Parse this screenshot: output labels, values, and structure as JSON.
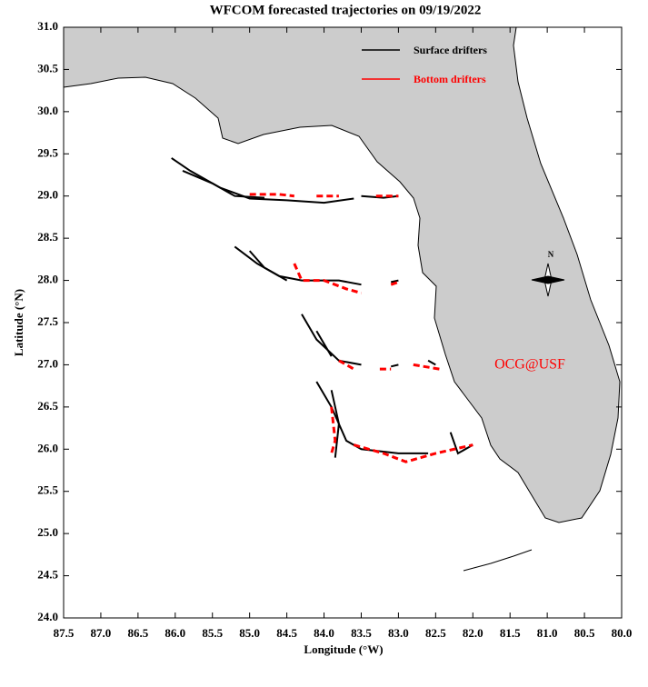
{
  "chart_data": {
    "type": "trajectory-map",
    "title": "WFCOM forecasted trajectories on 09/19/2022",
    "x_label": "Longitude (°W)",
    "y_label": "Latitude (°N)",
    "annotation": "OCG@USF",
    "compass_label": "N",
    "xlim": [
      87.5,
      80.0
    ],
    "ylim": [
      24.0,
      31.0
    ],
    "xticks": [
      87.5,
      {
        "value": 87,
        "label": "87.0"
      },
      86.5,
      {
        "value": 86,
        "label": "86.0"
      },
      85.5,
      {
        "value": 85,
        "label": "85.0"
      },
      84.5,
      {
        "value": 84,
        "label": "84.0"
      },
      83.5,
      {
        "value": 83,
        "label": "83.0"
      },
      82.5,
      {
        "value": 82,
        "label": "82.0"
      },
      81.5,
      {
        "value": 81,
        "label": "81.0"
      },
      80.5,
      {
        "value": 80,
        "label": "80.0"
      }
    ],
    "yticks": [
      {
        "value": 24,
        "label": "24.0"
      },
      24.5,
      {
        "value": 25,
        "label": "25.0"
      },
      25.5,
      {
        "value": 26,
        "label": "26.0"
      },
      26.5,
      {
        "value": 27,
        "label": "27.0"
      },
      27.5,
      {
        "value": 28,
        "label": "28.0"
      },
      28.5,
      {
        "value": 29,
        "label": "29.0"
      },
      29.5,
      {
        "value": 30,
        "label": "30.0"
      },
      30.5,
      {
        "value": 31,
        "label": "31.0"
      }
    ],
    "series": [
      {
        "name": "Surface drifters",
        "color": "#000000",
        "tracks": [
          {
            "x": [
              86.05,
              85.8,
              85.4,
              85.0,
              84.5,
              84.0,
              83.6
            ],
            "y": [
              29.45,
              29.3,
              29.1,
              28.97,
              28.95,
              28.92,
              28.97
            ]
          },
          {
            "x": [
              85.9,
              85.5,
              85.2,
              84.8
            ],
            "y": [
              29.3,
              29.15,
              29.0,
              28.98
            ]
          },
          {
            "x": [
              83.5,
              83.2,
              83.0
            ],
            "y": [
              29.0,
              28.98,
              29.0
            ]
          },
          {
            "x": [
              85.2,
              84.9,
              84.6,
              84.3,
              83.8,
              83.5
            ],
            "y": [
              28.4,
              28.2,
              28.05,
              28.0,
              28.0,
              27.95
            ]
          },
          {
            "x": [
              85.0,
              84.8,
              84.5
            ],
            "y": [
              28.35,
              28.15,
              28.0
            ]
          },
          {
            "x": [
              83.1,
              83.0
            ],
            "y": [
              27.98,
              28.0
            ]
          },
          {
            "x": [
              84.3,
              84.1,
              83.8,
              83.5
            ],
            "y": [
              27.6,
              27.3,
              27.05,
              27.0
            ]
          },
          {
            "x": [
              84.1,
              83.9
            ],
            "y": [
              27.4,
              27.1
            ]
          },
          {
            "x": [
              83.1,
              83.0
            ],
            "y": [
              26.98,
              27.0
            ]
          },
          {
            "x": [
              82.6,
              82.5
            ],
            "y": [
              27.05,
              27.0
            ]
          },
          {
            "x": [
              84.1,
              83.9,
              83.7,
              83.5,
              83.0,
              82.6
            ],
            "y": [
              26.8,
              26.5,
              26.1,
              26.0,
              25.95,
              25.95
            ]
          },
          {
            "x": [
              83.9,
              83.8,
              83.85
            ],
            "y": [
              26.7,
              26.3,
              25.9
            ]
          },
          {
            "x": [
              82.3,
              82.2,
              82.0
            ],
            "y": [
              26.2,
              25.95,
              26.05
            ]
          }
        ]
      },
      {
        "name": "Bottom drifters",
        "color": "#ff0000",
        "tracks": [
          {
            "x": [
              85.0,
              84.6,
              84.4
            ],
            "y": [
              29.02,
              29.02,
              29.0
            ]
          },
          {
            "x": [
              84.1,
              83.8
            ],
            "y": [
              29.0,
              29.0
            ]
          },
          {
            "x": [
              83.3,
              83.0
            ],
            "y": [
              29.0,
              29.0
            ]
          },
          {
            "x": [
              84.4,
              84.3,
              84.0,
              83.7,
              83.5
            ],
            "y": [
              28.2,
              28.0,
              28.0,
              27.9,
              27.85
            ]
          },
          {
            "x": [
              83.1,
              83.0
            ],
            "y": [
              27.95,
              27.98
            ]
          },
          {
            "x": [
              83.8,
              83.6
            ],
            "y": [
              27.05,
              26.95
            ]
          },
          {
            "x": [
              83.25,
              83.1
            ],
            "y": [
              26.95,
              26.95
            ]
          },
          {
            "x": [
              82.8,
              82.45
            ],
            "y": [
              27.0,
              26.95
            ]
          },
          {
            "x": [
              83.9,
              83.85,
              83.9
            ],
            "y": [
              26.5,
              26.1,
              25.95
            ]
          },
          {
            "x": [
              83.6,
              83.2,
              82.9,
              82.5,
              82.0
            ],
            "y": [
              26.05,
              25.95,
              25.85,
              25.95,
              26.05
            ]
          }
        ]
      }
    ]
  }
}
